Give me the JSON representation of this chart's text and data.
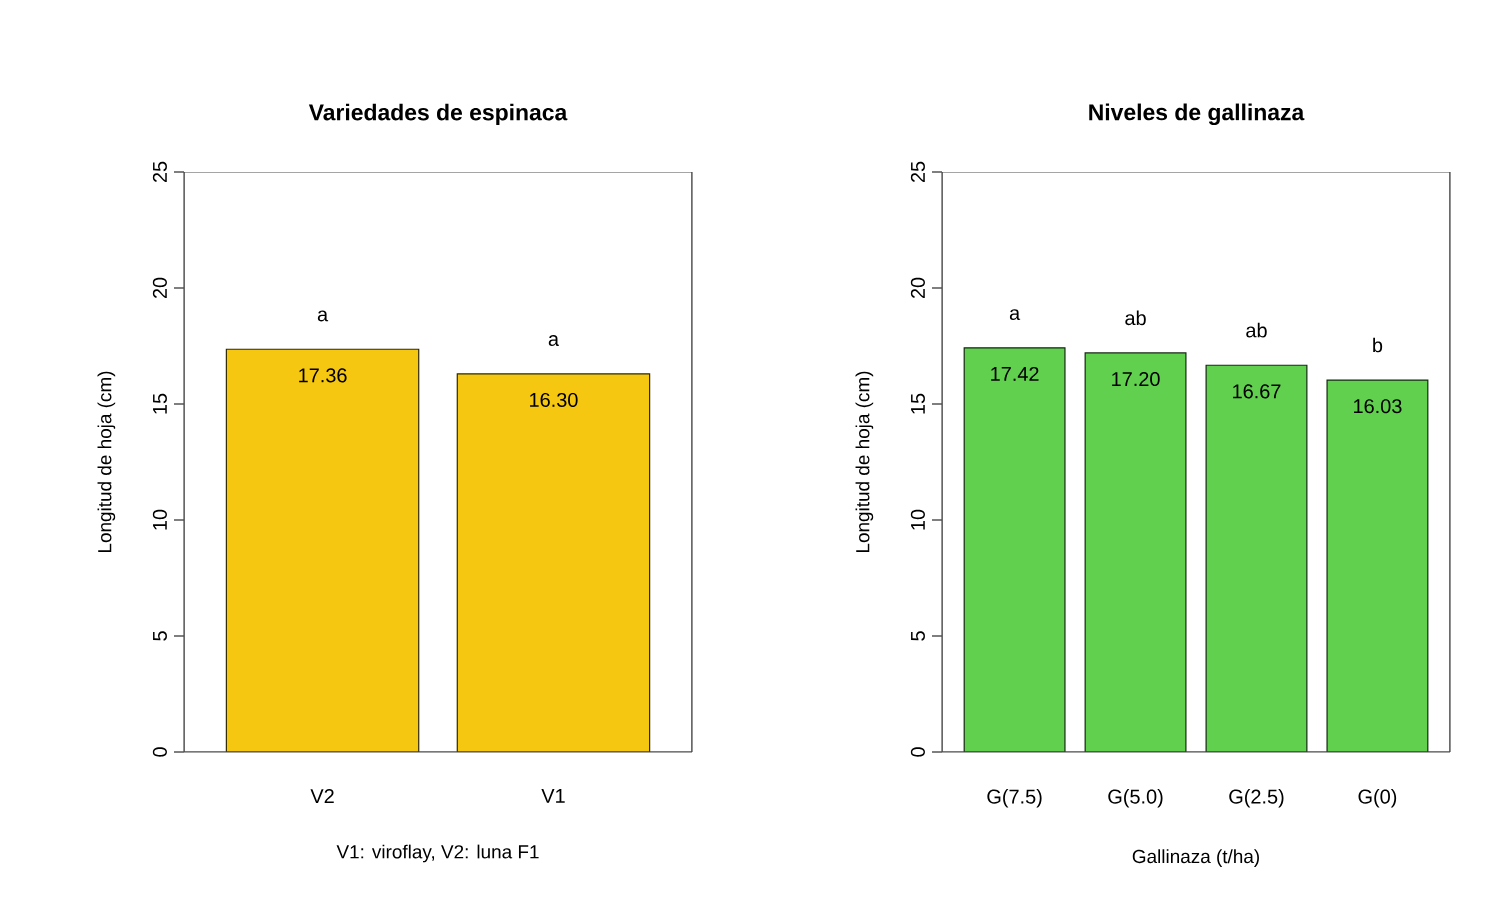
{
  "chart_data": [
    {
      "type": "bar",
      "title": "Variedades de espinaca",
      "xlabel": "V1: viroflay, V2: luna F1",
      "ylabel": "Longitud de hoja (cm)",
      "categories": [
        "V2",
        "V1"
      ],
      "values": [
        17.36,
        16.3
      ],
      "color": "#f5c710",
      "value_labels": [
        "17.36",
        "16.30"
      ],
      "ylim": [
        0,
        25
      ],
      "yticks": [
        0,
        5,
        10,
        15,
        20,
        25
      ],
      "annotations": [
        "a",
        "a"
      ]
    },
    {
      "type": "bar",
      "title": "Niveles de gallinaza",
      "xlabel": "Gallinaza (t/ha)",
      "ylabel": "Longitud de hoja (cm)",
      "categories": [
        "G(7.5)",
        "G(5.0)",
        "G(2.5)",
        "G(0)"
      ],
      "values": [
        17.42,
        17.2,
        16.67,
        16.03
      ],
      "color": "#61d04f",
      "value_labels": [
        "17.42",
        "17.20",
        "16.67",
        "16.03"
      ],
      "ylim": [
        0,
        25
      ],
      "yticks": [
        0,
        5,
        10,
        15,
        20,
        25
      ],
      "annotations": [
        "a",
        "ab",
        "ab",
        "b"
      ]
    }
  ]
}
